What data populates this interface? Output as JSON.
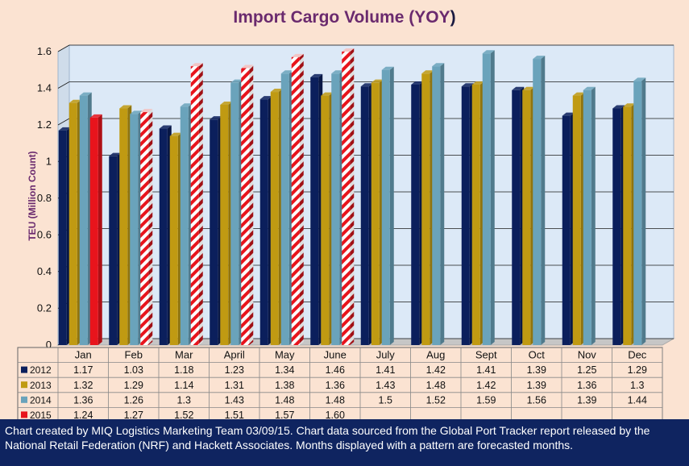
{
  "chart_data": {
    "type": "bar",
    "title": "Import Cargo Volume (YOY",
    "title_paren": ")",
    "ylabel": "TEU (Million Count)",
    "xlabel": "",
    "ylim": [
      0,
      1.6
    ],
    "yticks": [
      "0",
      "0.2",
      "0.4",
      "0.6",
      "0.8",
      "1",
      "1.2",
      "1.4",
      "1.6"
    ],
    "grid": true,
    "legend": "data-table",
    "categories": [
      "Jan",
      "Feb",
      "Mar",
      "April",
      "May",
      "June",
      "July",
      "Aug",
      "Sept",
      "Oct",
      "Nov",
      "Dec"
    ],
    "series": [
      {
        "name": "2012",
        "color": "#0b1f5c",
        "values": [
          1.17,
          1.03,
          1.18,
          1.23,
          1.34,
          1.46,
          1.41,
          1.42,
          1.41,
          1.39,
          1.25,
          1.29
        ],
        "labels": [
          "1.17",
          "1.03",
          "1.18",
          "1.23",
          "1.34",
          "1.46",
          "1.41",
          "1.42",
          "1.41",
          "1.39",
          "1.25",
          "1.29"
        ]
      },
      {
        "name": "2013",
        "color": "#c09a12",
        "values": [
          1.32,
          1.29,
          1.14,
          1.31,
          1.38,
          1.36,
          1.43,
          1.48,
          1.42,
          1.39,
          1.36,
          1.3
        ],
        "labels": [
          "1.32",
          "1.29",
          "1.14",
          "1.31",
          "1.38",
          "1.36",
          "1.43",
          "1.48",
          "1.42",
          "1.39",
          "1.36",
          "1.3"
        ]
      },
      {
        "name": "2014",
        "color": "#6aa3bb",
        "values": [
          1.36,
          1.26,
          1.3,
          1.43,
          1.48,
          1.48,
          1.5,
          1.52,
          1.59,
          1.56,
          1.39,
          1.44
        ],
        "labels": [
          "1.36",
          "1.26",
          "1.3",
          "1.43",
          "1.48",
          "1.48",
          "1.5",
          "1.52",
          "1.59",
          "1.56",
          "1.39",
          "1.44"
        ]
      },
      {
        "name": "2015",
        "color": "#e8141c",
        "values": [
          1.24,
          1.27,
          1.52,
          1.51,
          1.57,
          1.6,
          null,
          null,
          null,
          null,
          null,
          null
        ],
        "labels": [
          "1.24",
          "1.27",
          "1.52",
          "1.51",
          "1.57",
          "1.60",
          "",
          "",
          "",
          "",
          "",
          ""
        ],
        "forecast": [
          false,
          true,
          true,
          true,
          true,
          true,
          false,
          false,
          false,
          false,
          false,
          false
        ]
      }
    ]
  },
  "footer": {
    "text": "Chart created by MIQ Logistics Marketing Team 03/09/15. Chart data sourced from the Global Port Tracker report released by the National Retail Federation (NRF) and Hackett Associates. Months displayed with a pattern are forecasted months."
  },
  "colors": {
    "plot_background": "#dce9f7",
    "page_background": "#fbe3d2",
    "footer_background": "#0f2460",
    "title": "#6a2a6e"
  }
}
